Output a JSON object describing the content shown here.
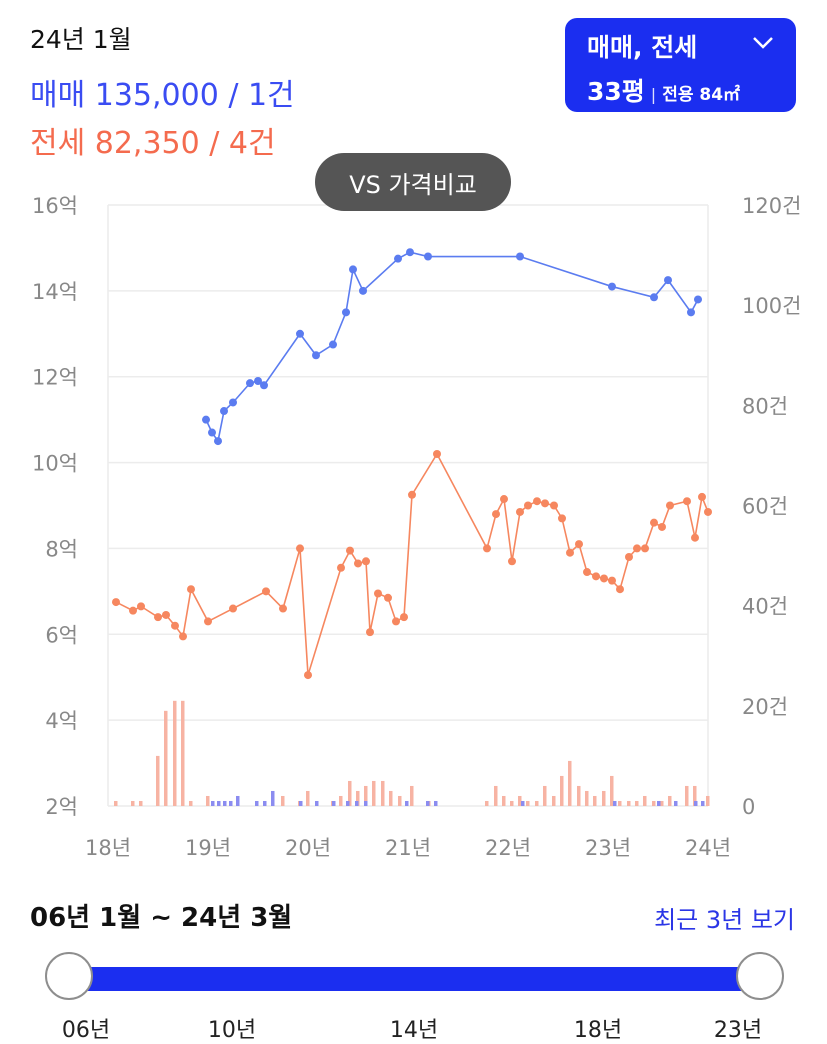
{
  "summary": {
    "date": "24년 1월",
    "sale_line": "매매 135,000 / 1건",
    "jeonse_line": "전세 82,350 / 4건"
  },
  "type_selector": {
    "label": "매매, 전세",
    "pyeong": "33평",
    "separator": "|",
    "area": "전용 84㎡",
    "chevron": "chevron-down-icon"
  },
  "vs_button": {
    "label": "VS 가격비교"
  },
  "range": {
    "label": "06년 1월 ~ 24년 3월",
    "recent_link": "최근 3년 보기",
    "year_ticks": [
      "06년",
      "10년",
      "14년",
      "18년",
      "23년"
    ]
  },
  "colors": {
    "sale": "#5b7cf0",
    "jeonse": "#f6875f",
    "sale_bar": "#8b8cf0",
    "jeonse_bar": "#f7b3a3",
    "accent": "#1b2ef0",
    "grid": "#ececec"
  },
  "chart_data": {
    "type": "line",
    "x_ticks": [
      2018,
      2019,
      2020,
      2021,
      2022,
      2023,
      2024
    ],
    "x_tick_labels": [
      "18년",
      "19년",
      "20년",
      "21년",
      "22년",
      "23년",
      "24년"
    ],
    "xlim": [
      2018,
      2024
    ],
    "y_left_ticks": [
      2,
      4,
      6,
      8,
      10,
      12,
      14,
      16
    ],
    "y_left_labels": [
      "2억",
      "4억",
      "6억",
      "8억",
      "10억",
      "12억",
      "14억",
      "16억"
    ],
    "ylim_left": [
      2,
      16
    ],
    "y_right_ticks": [
      0,
      20,
      40,
      60,
      80,
      100,
      120
    ],
    "y_right_labels": [
      "0",
      "20건",
      "40건",
      "60건",
      "80건",
      "100건",
      "120건"
    ],
    "ylim_right": [
      0,
      120
    ],
    "grid": true,
    "series": [
      {
        "name": "매매",
        "axis": "left",
        "points": [
          [
            2018.98,
            11.0
          ],
          [
            2019.04,
            10.7
          ],
          [
            2019.1,
            10.5
          ],
          [
            2019.16,
            11.2
          ],
          [
            2019.25,
            11.4
          ],
          [
            2019.42,
            11.85
          ],
          [
            2019.5,
            11.9
          ],
          [
            2019.56,
            11.8
          ],
          [
            2019.92,
            13.0
          ],
          [
            2020.08,
            12.5
          ],
          [
            2020.25,
            12.75
          ],
          [
            2020.38,
            13.5
          ],
          [
            2020.45,
            14.5
          ],
          [
            2020.55,
            14.0
          ],
          [
            2020.9,
            14.75
          ],
          [
            2021.02,
            14.9
          ],
          [
            2021.2,
            14.8
          ],
          [
            2022.12,
            14.8
          ],
          [
            2023.04,
            14.1
          ],
          [
            2023.46,
            13.85
          ],
          [
            2023.6,
            14.25
          ],
          [
            2023.83,
            13.5
          ],
          [
            2023.9,
            13.8
          ]
        ]
      },
      {
        "name": "전세",
        "axis": "left",
        "points": [
          [
            2018.08,
            6.75
          ],
          [
            2018.25,
            6.55
          ],
          [
            2018.33,
            6.65
          ],
          [
            2018.5,
            6.4
          ],
          [
            2018.58,
            6.45
          ],
          [
            2018.67,
            6.2
          ],
          [
            2018.75,
            5.95
          ],
          [
            2018.83,
            7.05
          ],
          [
            2019.0,
            6.3
          ],
          [
            2019.25,
            6.6
          ],
          [
            2019.58,
            7.0
          ],
          [
            2019.75,
            6.6
          ],
          [
            2019.92,
            8.0
          ],
          [
            2020.0,
            5.05
          ],
          [
            2020.33,
            7.55
          ],
          [
            2020.42,
            7.95
          ],
          [
            2020.5,
            7.65
          ],
          [
            2020.58,
            7.7
          ],
          [
            2020.62,
            6.05
          ],
          [
            2020.7,
            6.95
          ],
          [
            2020.8,
            6.85
          ],
          [
            2020.88,
            6.3
          ],
          [
            2020.96,
            6.4
          ],
          [
            2021.04,
            9.25
          ],
          [
            2021.29,
            10.2
          ],
          [
            2021.79,
            8.0
          ],
          [
            2021.88,
            8.8
          ],
          [
            2021.96,
            9.15
          ],
          [
            2022.04,
            7.7
          ],
          [
            2022.12,
            8.85
          ],
          [
            2022.2,
            9.0
          ],
          [
            2022.29,
            9.1
          ],
          [
            2022.37,
            9.05
          ],
          [
            2022.46,
            9.0
          ],
          [
            2022.54,
            8.7
          ],
          [
            2022.62,
            7.9
          ],
          [
            2022.71,
            8.1
          ],
          [
            2022.79,
            7.45
          ],
          [
            2022.88,
            7.35
          ],
          [
            2022.96,
            7.3
          ],
          [
            2023.04,
            7.25
          ],
          [
            2023.12,
            7.05
          ],
          [
            2023.21,
            7.8
          ],
          [
            2023.29,
            8.0
          ],
          [
            2023.37,
            8.0
          ],
          [
            2023.46,
            8.6
          ],
          [
            2023.54,
            8.5
          ],
          [
            2023.62,
            9.0
          ],
          [
            2023.79,
            9.1
          ],
          [
            2023.87,
            8.25
          ],
          [
            2023.94,
            9.2
          ],
          [
            2024.0,
            8.85
          ]
        ]
      }
    ],
    "volume_bars": [
      {
        "name": "전세 거래량",
        "axis": "right",
        "points": [
          [
            2018.08,
            1
          ],
          [
            2018.25,
            1
          ],
          [
            2018.33,
            1
          ],
          [
            2018.5,
            10
          ],
          [
            2018.58,
            19
          ],
          [
            2018.67,
            21
          ],
          [
            2018.75,
            21
          ],
          [
            2018.83,
            1
          ],
          [
            2019.0,
            2
          ],
          [
            2019.75,
            2
          ],
          [
            2019.92,
            1
          ],
          [
            2020.0,
            3
          ],
          [
            2020.25,
            1
          ],
          [
            2020.33,
            2
          ],
          [
            2020.42,
            5
          ],
          [
            2020.5,
            3
          ],
          [
            2020.58,
            4
          ],
          [
            2020.66,
            5
          ],
          [
            2020.75,
            5
          ],
          [
            2020.83,
            3
          ],
          [
            2020.92,
            2
          ],
          [
            2021.04,
            4
          ],
          [
            2021.21,
            1
          ],
          [
            2021.79,
            1
          ],
          [
            2021.88,
            4
          ],
          [
            2021.96,
            2
          ],
          [
            2022.04,
            1
          ],
          [
            2022.12,
            2
          ],
          [
            2022.2,
            1
          ],
          [
            2022.29,
            1
          ],
          [
            2022.37,
            4
          ],
          [
            2022.46,
            2
          ],
          [
            2022.54,
            6
          ],
          [
            2022.62,
            9
          ],
          [
            2022.71,
            4
          ],
          [
            2022.79,
            3
          ],
          [
            2022.87,
            2
          ],
          [
            2022.96,
            3
          ],
          [
            2023.04,
            6
          ],
          [
            2023.12,
            1
          ],
          [
            2023.21,
            1
          ],
          [
            2023.29,
            1
          ],
          [
            2023.37,
            2
          ],
          [
            2023.46,
            1
          ],
          [
            2023.54,
            1
          ],
          [
            2023.62,
            2
          ],
          [
            2023.79,
            4
          ],
          [
            2023.87,
            4
          ],
          [
            2024.0,
            2
          ]
        ]
      },
      {
        "name": "매매 거래량",
        "axis": "right",
        "points": [
          [
            2019.02,
            1
          ],
          [
            2019.08,
            1
          ],
          [
            2019.14,
            1
          ],
          [
            2019.2,
            1
          ],
          [
            2019.27,
            2
          ],
          [
            2019.46,
            1
          ],
          [
            2019.54,
            1
          ],
          [
            2019.62,
            3
          ],
          [
            2019.9,
            1
          ],
          [
            2020.06,
            1
          ],
          [
            2020.23,
            1
          ],
          [
            2020.37,
            1
          ],
          [
            2020.46,
            1
          ],
          [
            2020.55,
            1
          ],
          [
            2020.96,
            1
          ],
          [
            2021.17,
            1
          ],
          [
            2021.25,
            1
          ],
          [
            2022.12,
            1
          ],
          [
            2023.04,
            1
          ],
          [
            2023.48,
            1
          ],
          [
            2023.65,
            1
          ],
          [
            2023.85,
            1
          ],
          [
            2023.92,
            1
          ]
        ]
      }
    ]
  }
}
